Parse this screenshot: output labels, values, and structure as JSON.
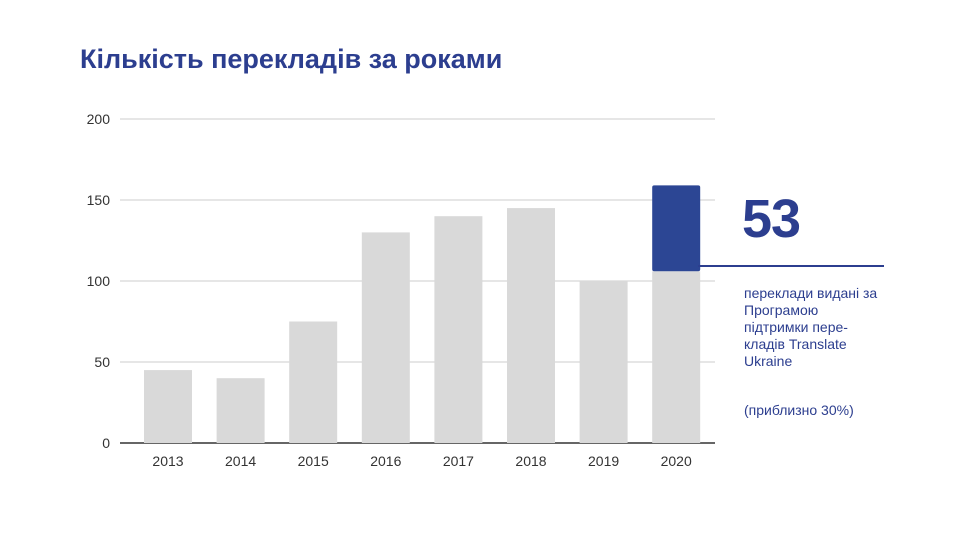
{
  "title": "Кількість перекладів за роками",
  "chart_data": {
    "type": "bar",
    "categories": [
      "2013",
      "2014",
      "2015",
      "2016",
      "2017",
      "2018",
      "2019",
      "2020"
    ],
    "values": [
      45,
      40,
      75,
      130,
      140,
      145,
      100,
      159
    ],
    "highlight": {
      "category": "2020",
      "value": 53
    },
    "y_ticks": [
      0,
      50,
      100,
      150,
      200
    ],
    "ylim": [
      0,
      200
    ],
    "grid": true,
    "colors": {
      "bar": "#d9d9d9",
      "highlight": "#2c4694",
      "grid": "#cccccc",
      "axis": "#333333"
    }
  },
  "callout": {
    "number": "53",
    "text": "переклади видані за Програмою підтримки пере-кладів Translate Ukraine",
    "note": "(приблизно 30%)"
  }
}
